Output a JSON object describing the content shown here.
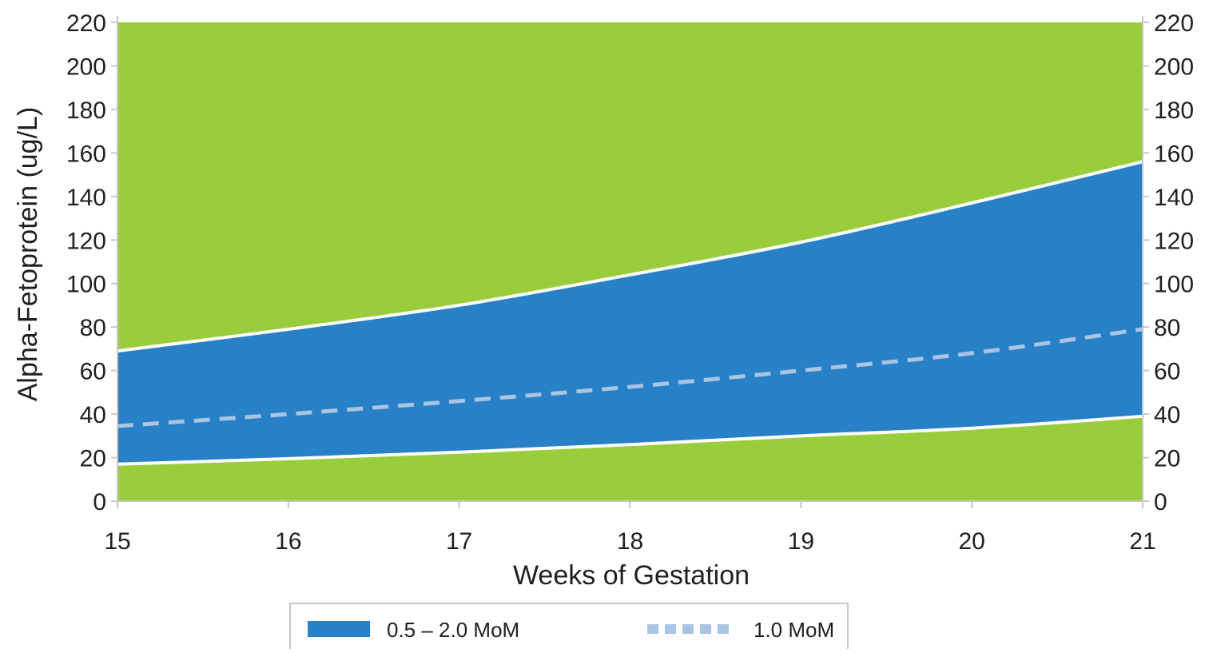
{
  "chart_data": {
    "type": "area",
    "title": "",
    "xlabel": "Weeks of Gestation",
    "ylabel": "Alpha-Fetoprotein (ug/L)",
    "x": [
      15,
      16,
      17,
      18,
      19,
      20,
      21
    ],
    "x_tick_labels": [
      "15",
      "16",
      "17",
      "18",
      "19",
      "20",
      "21"
    ],
    "y_tick_labels": [
      "0",
      "20",
      "40",
      "60",
      "80",
      "100",
      "120",
      "140",
      "160",
      "180",
      "200",
      "220"
    ],
    "xlim": [
      15,
      21
    ],
    "ylim": [
      0,
      220
    ],
    "y_ticks": [
      0,
      20,
      40,
      60,
      80,
      100,
      120,
      140,
      160,
      180,
      200,
      220
    ],
    "y_axis_right_mirror": true,
    "grid": false,
    "legend_position": "bottom",
    "series": [
      {
        "name": "0.5 – 2.0 MoM",
        "kind": "band",
        "lower": [
          17,
          19.5,
          22.5,
          26,
          30,
          33.5,
          39
        ],
        "upper": [
          69,
          79,
          90,
          104,
          119,
          137,
          156
        ]
      },
      {
        "name": "1.0 MoM",
        "kind": "dashed-line",
        "values": [
          34.5,
          40,
          46,
          52.5,
          60,
          68,
          79
        ]
      }
    ],
    "colors": {
      "outside_range": "#9acd3c",
      "band": "#2880c6",
      "band_edge": "#ffffff",
      "median_line": "#aac4e4",
      "axis": "#c8c8c8",
      "text": "#231f20"
    }
  },
  "legend": {
    "items": [
      {
        "label": "0.5 – 2.0 MoM",
        "swatch": "solid",
        "color": "#2880c6"
      },
      {
        "label": "1.0 MoM",
        "swatch": "dashed",
        "color": "#aac4e4"
      }
    ]
  }
}
